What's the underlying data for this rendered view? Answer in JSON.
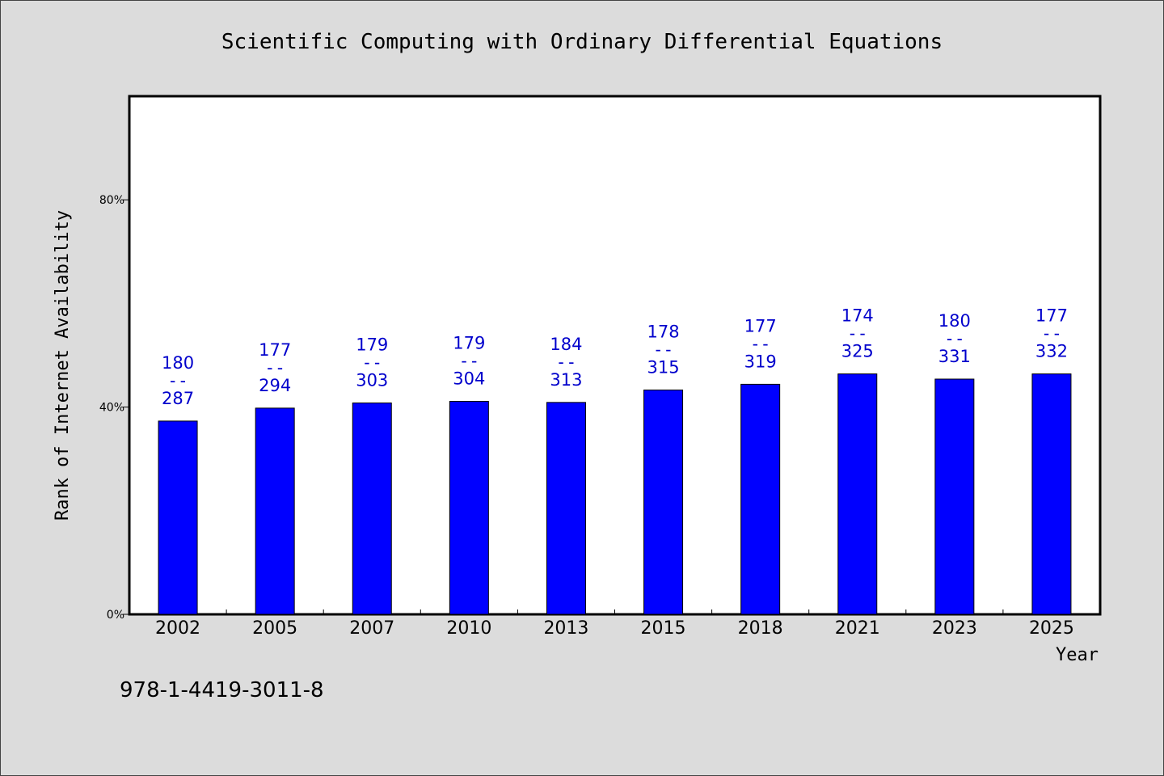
{
  "chart_data": {
    "type": "bar",
    "title": "Scientific Computing with Ordinary Differential Equations",
    "xlabel": "Year",
    "ylabel": "Rank of Internet Availability",
    "categories": [
      "2002",
      "2005",
      "2007",
      "2010",
      "2013",
      "2015",
      "2018",
      "2021",
      "2023",
      "2025"
    ],
    "values": [
      37.3,
      39.8,
      40.8,
      41.1,
      40.9,
      43.3,
      44.4,
      46.4,
      45.4,
      46.4
    ],
    "labels_top": [
      "180",
      "177",
      "179",
      "179",
      "184",
      "178",
      "177",
      "174",
      "180",
      "177"
    ],
    "labels_bottom": [
      "287",
      "294",
      "303",
      "304",
      "313",
      "315",
      "319",
      "325",
      "331",
      "332"
    ],
    "label_separator": "--",
    "ylim": [
      0,
      100
    ],
    "yticks": [
      0,
      40,
      80
    ],
    "ytick_labels": [
      "0%",
      "40%",
      "80%"
    ],
    "bar_color": "#0000ff",
    "label_color": "#0000cc",
    "grid": false,
    "legend": "none"
  },
  "footer": {
    "isbn": "978-1-4419-3011-8"
  }
}
